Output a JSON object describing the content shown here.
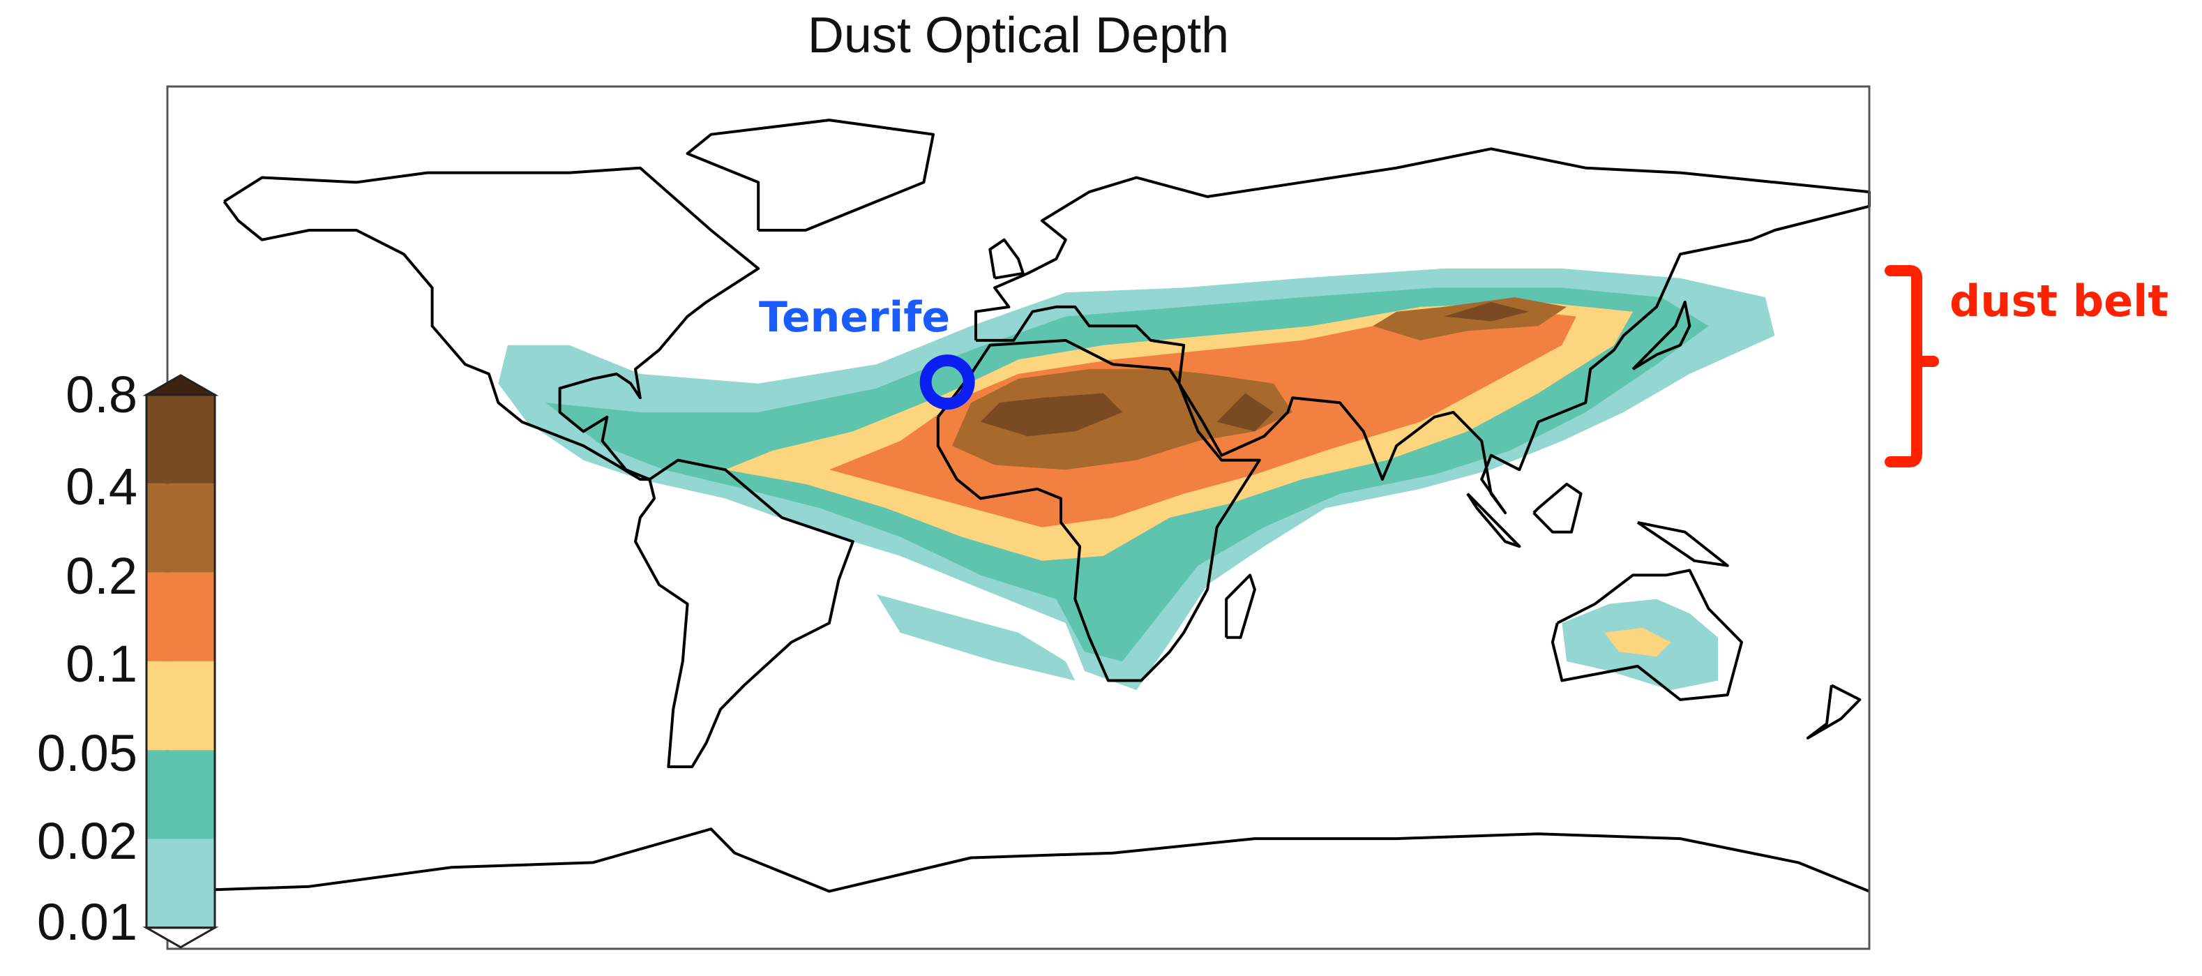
{
  "title": "Dust Optical Depth",
  "colorbar": {
    "labels": [
      "0.8",
      "0.4",
      "0.2",
      "0.1",
      "0.05",
      "0.02",
      "0.01"
    ],
    "colors": [
      "#7a4a22",
      "#a8692d",
      "#f28040",
      "#fdd57e",
      "#5fc4ad",
      "#93d6d2"
    ],
    "over_color": "#3e2410",
    "under_color": "#ffffff"
  },
  "annotations": {
    "tenerife": {
      "label": "Tenerife",
      "color": "#1a5cff",
      "marker_color": "#0a1ff0",
      "lon": -16.5,
      "lat": 28.3
    },
    "dust_belt": {
      "label": "dust belt",
      "color": "#ff2200"
    }
  }
}
